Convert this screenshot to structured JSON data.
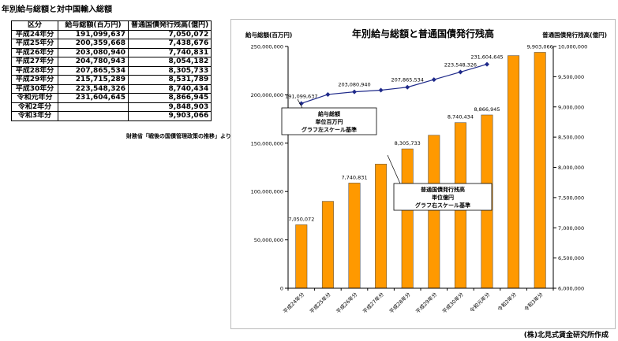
{
  "page_title": "年別給与総額と対中国輸入総額",
  "table": {
    "headers": [
      "区分",
      "給与総額(百万円)",
      "普通国債発行残高(億円)"
    ],
    "rows": [
      {
        "year": "平成24年分",
        "salary": "191,099,637",
        "bond": "7,050,072"
      },
      {
        "year": "平成25年分",
        "salary": "200,359,668",
        "bond": "7,438,676"
      },
      {
        "year": "平成26年分",
        "salary": "203,080,940",
        "bond": "7,740,831"
      },
      {
        "year": "平成27年分",
        "salary": "204,780,943",
        "bond": "8,054,182"
      },
      {
        "year": "平成28年分",
        "salary": "207,865,534",
        "bond": "8,305,733"
      },
      {
        "year": "平成29年分",
        "salary": "215,715,289",
        "bond": "8,531,789"
      },
      {
        "year": "平成30年分",
        "salary": "223,548,326",
        "bond": "8,740,434"
      },
      {
        "year": "令和元年分",
        "salary": "231,604,645",
        "bond": "8,866,945"
      },
      {
        "year": "令和2年分",
        "salary": "",
        "bond": "9,848,903"
      },
      {
        "year": "令和3年分",
        "salary": "",
        "bond": "9,903,066"
      }
    ]
  },
  "source_note": "財務省「戦後の国債管理政策の推移」より",
  "credit": "(株)北見式賃金研究所作成",
  "colors": {
    "bar": "#ff9900",
    "line": "#1f2a8a",
    "axis": "#000000"
  },
  "chart_data": {
    "type": "bar",
    "title": "年別給与総額と普通国債発行残高",
    "ylabel_left": "給与総額(百万円)",
    "ylabel_right": "普通国債発行残高(億円)",
    "categories": [
      "平成24年分",
      "平成25年分",
      "平成26年分",
      "平成27年分",
      "平成28年分",
      "平成29年分",
      "平成30年分",
      "令和元年分",
      "令和2年分",
      "令和3年分"
    ],
    "ylim_left": [
      0,
      250000000
    ],
    "yticks_left": [
      0,
      50000000,
      100000000,
      150000000,
      200000000,
      250000000
    ],
    "ytick_labels_left": [
      "0",
      "50,000,000",
      "100,000,000",
      "150,000,000",
      "200,000,000",
      "250,000,000"
    ],
    "ylim_right": [
      6000000,
      10000000
    ],
    "yticks_right": [
      6000000,
      6500000,
      7000000,
      7500000,
      8000000,
      8500000,
      9000000,
      9500000,
      10000000
    ],
    "ytick_labels_right": [
      "6,000,000",
      "6,500,000",
      "7,000,000",
      "7,500,000",
      "8,000,000",
      "8,500,000",
      "9,000,000",
      "9,500,000",
      "10,000,000"
    ],
    "series": [
      {
        "name": "普通国債発行残高",
        "type": "bar",
        "axis": "right",
        "values": [
          7050072,
          7438676,
          7740831,
          8054182,
          8305733,
          8531789,
          8740434,
          8866945,
          9848903,
          9903066
        ]
      },
      {
        "name": "給与総額",
        "type": "line",
        "axis": "left",
        "values": [
          191099637,
          200359668,
          203080940,
          204780943,
          207865534,
          215715289,
          223548326,
          231604645,
          null,
          null
        ]
      }
    ],
    "bar_labels": [
      {
        "index": 0,
        "text": "7,050,072"
      },
      {
        "index": 2,
        "text": "7,740,831"
      },
      {
        "index": 4,
        "text": "8,305,733"
      },
      {
        "index": 6,
        "text": "8,740,434"
      },
      {
        "index": 7,
        "text": "8,866,945"
      },
      {
        "index": 9,
        "text": "9,903,066"
      }
    ],
    "line_labels": [
      {
        "index": 0,
        "text": "191,099,637"
      },
      {
        "index": 2,
        "text": "203,080,940"
      },
      {
        "index": 4,
        "text": "207,865,534"
      },
      {
        "index": 6,
        "text": "223,548,326"
      },
      {
        "index": 7,
        "text": "231,604,645"
      }
    ],
    "annotations": [
      {
        "lines": [
          "給与総額",
          "単位百万円",
          "グラフ左スケール基準"
        ]
      },
      {
        "lines": [
          "普通国債発行残高",
          "単位億円",
          "グラフ右スケール基準"
        ]
      }
    ],
    "grid": false,
    "legend": "none"
  }
}
